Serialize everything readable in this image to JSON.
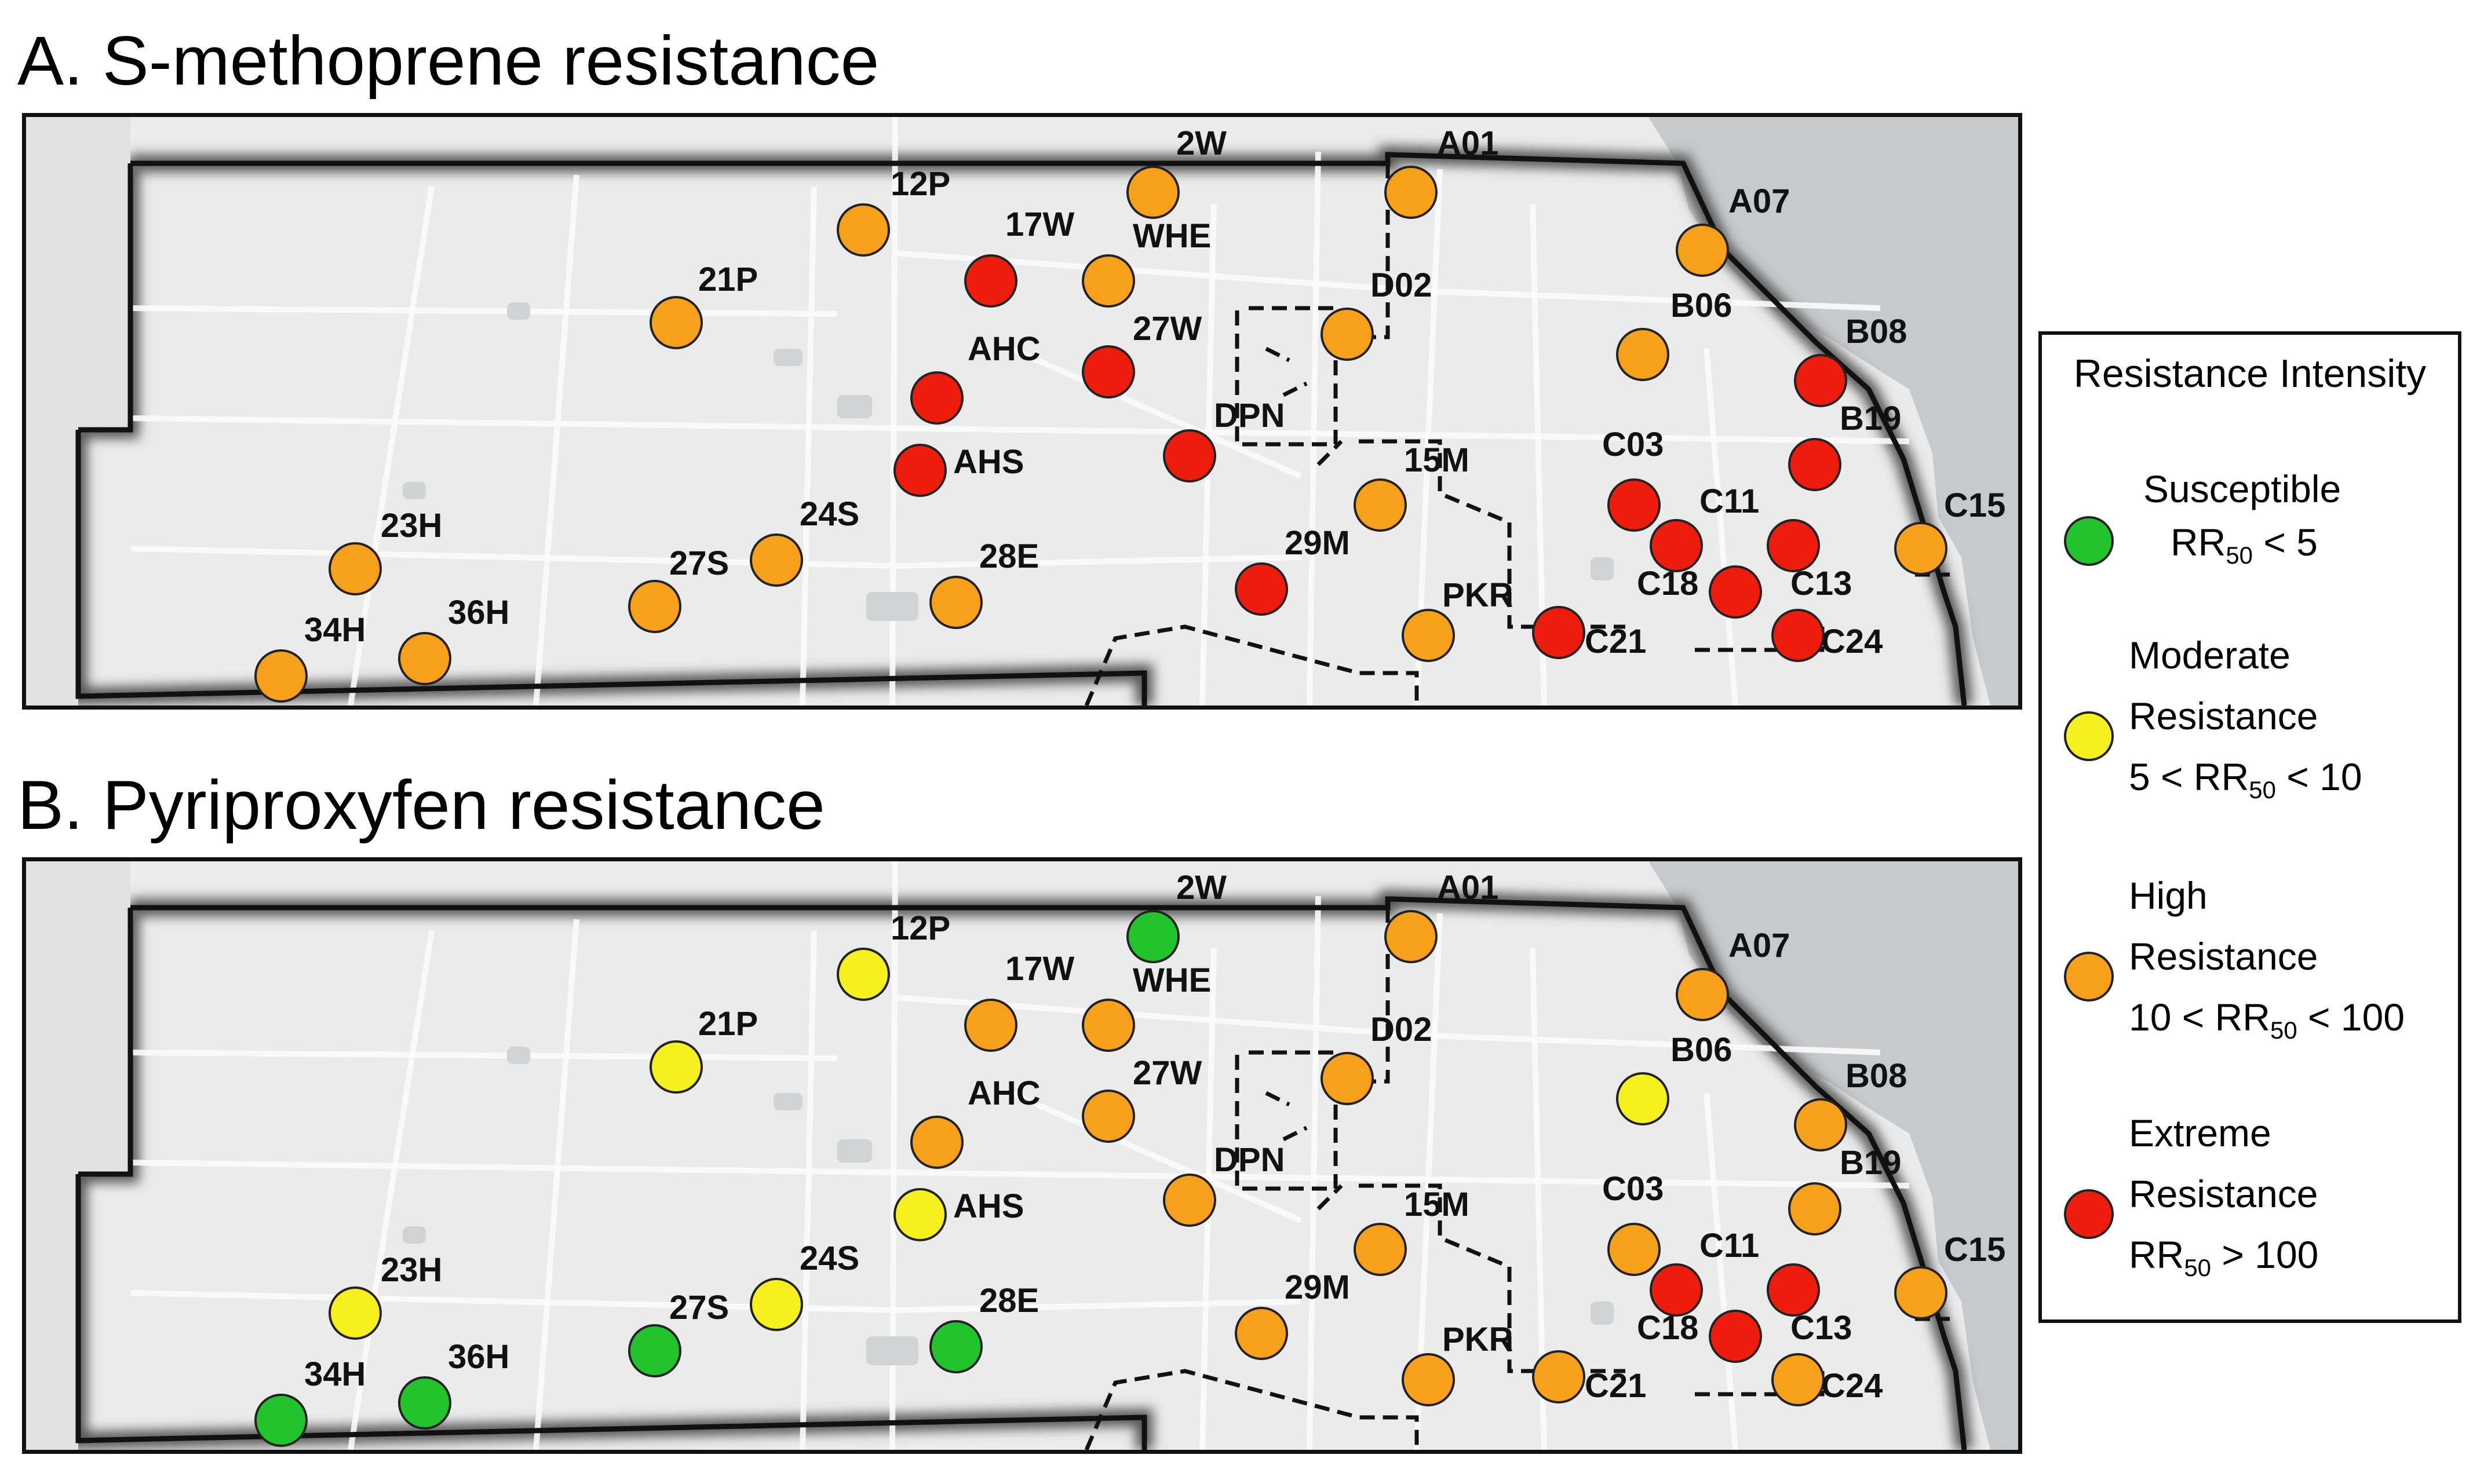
{
  "colors": {
    "susceptible": "#22c42e",
    "moderate": "#f5f01e",
    "high": "#f7a11a",
    "extreme": "#ee1c0c"
  },
  "panels": [
    {
      "title": "A. S-methoprene resistance",
      "sites": [
        {
          "name": "2W",
          "level": "high"
        },
        {
          "name": "12P",
          "level": "high"
        },
        {
          "name": "A01",
          "level": "high"
        },
        {
          "name": "A07",
          "level": "high"
        },
        {
          "name": "17W",
          "level": "extreme"
        },
        {
          "name": "WHE",
          "level": "high"
        },
        {
          "name": "21P",
          "level": "high"
        },
        {
          "name": "D02",
          "level": "high"
        },
        {
          "name": "B06",
          "level": "high"
        },
        {
          "name": "B08",
          "level": "extreme"
        },
        {
          "name": "AHC",
          "level": "extreme"
        },
        {
          "name": "27W",
          "level": "extreme"
        },
        {
          "name": "DPN",
          "level": "extreme"
        },
        {
          "name": "AHS",
          "level": "extreme"
        },
        {
          "name": "B19",
          "level": "extreme"
        },
        {
          "name": "15M",
          "level": "high"
        },
        {
          "name": "C03",
          "level": "extreme"
        },
        {
          "name": "C11",
          "level": "extreme"
        },
        {
          "name": "C15",
          "level": "high"
        },
        {
          "name": "23H",
          "level": "high"
        },
        {
          "name": "24S",
          "level": "high"
        },
        {
          "name": "27S",
          "level": "high"
        },
        {
          "name": "28E",
          "level": "high"
        },
        {
          "name": "29M",
          "level": "extreme"
        },
        {
          "name": "C13",
          "level": "extreme"
        },
        {
          "name": "C18",
          "level": "extreme"
        },
        {
          "name": "34H",
          "level": "high"
        },
        {
          "name": "36H",
          "level": "high"
        },
        {
          "name": "PKR",
          "level": "high"
        },
        {
          "name": "C21",
          "level": "extreme"
        },
        {
          "name": "C24",
          "level": "extreme"
        }
      ]
    },
    {
      "title": "B. Pyriproxyfen resistance",
      "sites": [
        {
          "name": "2W",
          "level": "susceptible"
        },
        {
          "name": "12P",
          "level": "moderate"
        },
        {
          "name": "A01",
          "level": "high"
        },
        {
          "name": "A07",
          "level": "high"
        },
        {
          "name": "17W",
          "level": "high"
        },
        {
          "name": "WHE",
          "level": "high"
        },
        {
          "name": "21P",
          "level": "moderate"
        },
        {
          "name": "D02",
          "level": "high"
        },
        {
          "name": "B06",
          "level": "moderate"
        },
        {
          "name": "B08",
          "level": "high"
        },
        {
          "name": "AHC",
          "level": "high"
        },
        {
          "name": "27W",
          "level": "high"
        },
        {
          "name": "DPN",
          "level": "high"
        },
        {
          "name": "AHS",
          "level": "moderate"
        },
        {
          "name": "B19",
          "level": "high"
        },
        {
          "name": "15M",
          "level": "high"
        },
        {
          "name": "C03",
          "level": "high"
        },
        {
          "name": "C11",
          "level": "extreme"
        },
        {
          "name": "C15",
          "level": "high"
        },
        {
          "name": "23H",
          "level": "moderate"
        },
        {
          "name": "24S",
          "level": "moderate"
        },
        {
          "name": "27S",
          "level": "susceptible"
        },
        {
          "name": "28E",
          "level": "susceptible"
        },
        {
          "name": "29M",
          "level": "high"
        },
        {
          "name": "C13",
          "level": "extreme"
        },
        {
          "name": "C18",
          "level": "extreme"
        },
        {
          "name": "34H",
          "level": "susceptible"
        },
        {
          "name": "36H",
          "level": "susceptible"
        },
        {
          "name": "PKR",
          "level": "high"
        },
        {
          "name": "C21",
          "level": "high"
        },
        {
          "name": "C24",
          "level": "high"
        }
      ]
    }
  ],
  "legend": {
    "title": "Resistance Intensity",
    "items": [
      {
        "level": "susceptible",
        "name": "Susceptible",
        "rule_pre": "RR",
        "rule_sub": "50",
        "rule_post": " < 5"
      },
      {
        "level": "moderate",
        "name_1": "Moderate",
        "name_2": "Resistance",
        "rule_pre": "5 < RR",
        "rule_sub": "50",
        "rule_post": " < 10"
      },
      {
        "level": "high",
        "name_1": "High",
        "name_2": "Resistance",
        "rule_pre": "10 < RR",
        "rule_sub": "50",
        "rule_post": " < 100"
      },
      {
        "level": "extreme",
        "name_1": "Extreme",
        "name_2": "Resistance",
        "rule_pre": "RR",
        "rule_sub": "50",
        "rule_post": " > 100"
      }
    ]
  }
}
